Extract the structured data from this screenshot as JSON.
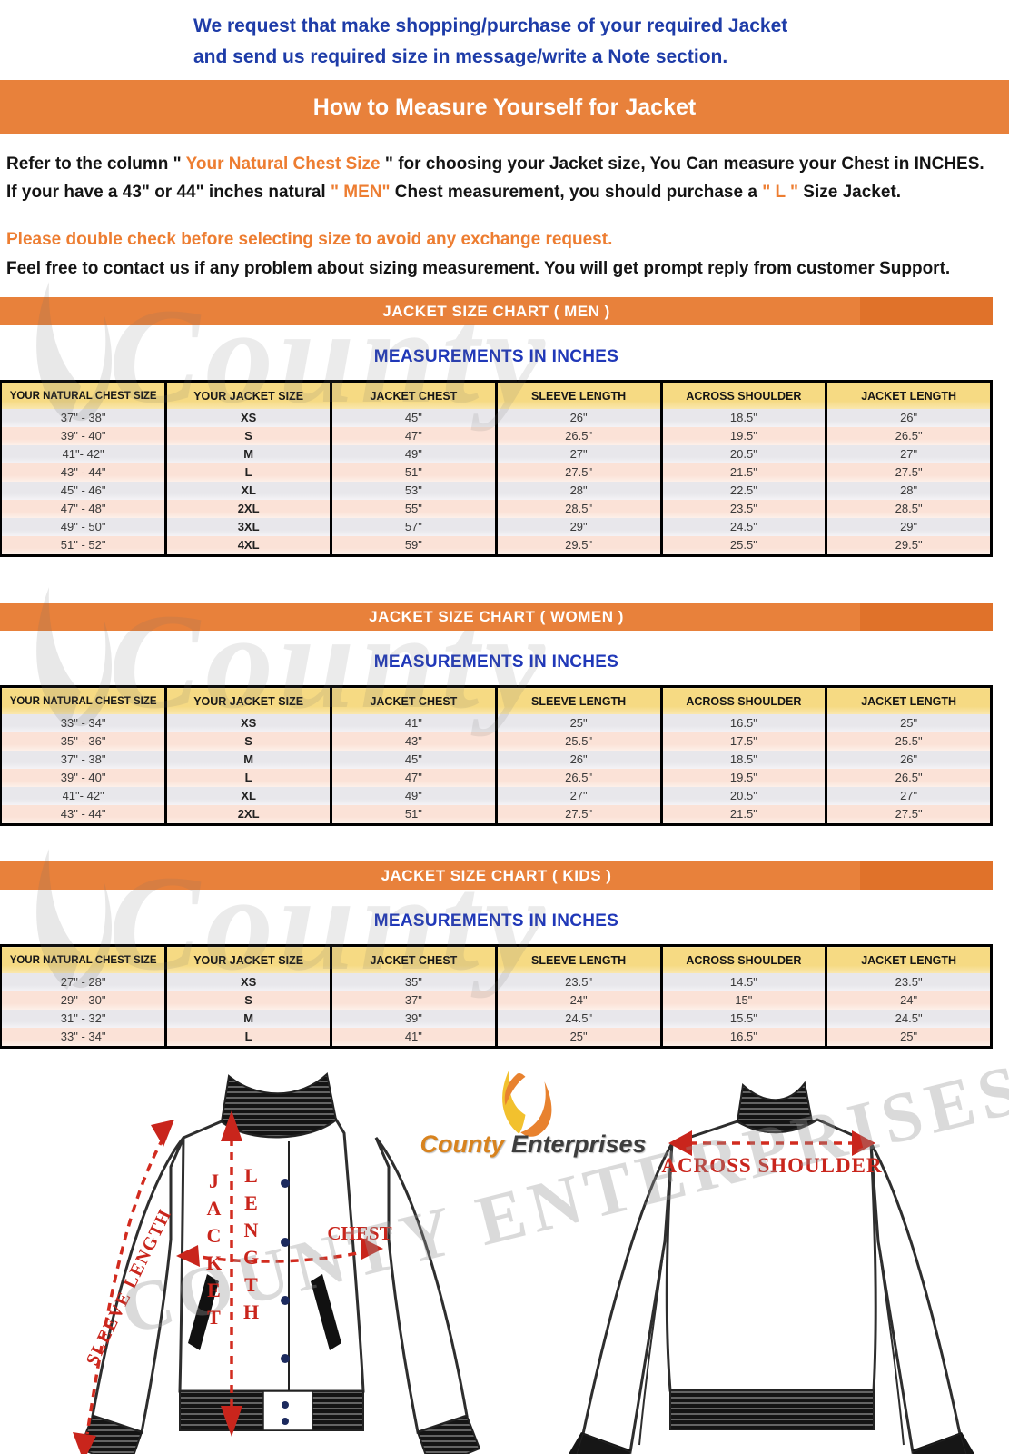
{
  "intro": {
    "line1": "We request that make shopping/purchase of your required Jacket",
    "line2": "and send us required size in message/write a Note section."
  },
  "banner": {
    "title": "How to Measure Yourself for Jacket"
  },
  "instructions": {
    "refer_prefix": "Refer to the column \" ",
    "refer_highlight": "Your Natural Chest Size",
    "refer_suffix": " \" for choosing your Jacket size, You Can measure your Chest in INCHES.",
    "size_prefix": "If your have a 43\" or 44\"  inches natural ",
    "size_highlight1": "\" MEN\"",
    "size_mid": " Chest measurement, you should purchase a ",
    "size_highlight2": "\" L \"",
    "size_suffix": " Size Jacket.",
    "warning": "Please double check before selecting size to avoid any exchange request.",
    "contact": "Feel free to contact us if any problem about sizing measurement. You will get prompt reply from customer Support."
  },
  "sections": [
    {
      "banner": "JACKET SIZE CHART ( MEN )",
      "subtitle": "MEASUREMENTS IN INCHES",
      "columns": [
        "YOUR NATURAL CHEST SIZE",
        "YOUR JACKET SIZE",
        "JACKET CHEST",
        "SLEEVE LENGTH",
        "ACROSS SHOULDER",
        "JACKET LENGTH"
      ],
      "rows": [
        [
          "37\" - 38\"",
          "XS",
          "45\"",
          "26\"",
          "18.5\"",
          "26\""
        ],
        [
          "39\" - 40\"",
          "S",
          "47\"",
          "26.5\"",
          "19.5\"",
          "26.5\""
        ],
        [
          "41\"- 42\"",
          "M",
          "49\"",
          "27\"",
          "20.5\"",
          "27\""
        ],
        [
          "43\" - 44\"",
          "L",
          "51\"",
          "27.5\"",
          "21.5\"",
          "27.5\""
        ],
        [
          "45\" - 46\"",
          "XL",
          "53\"",
          "28\"",
          "22.5\"",
          "28\""
        ],
        [
          "47\" - 48\"",
          "2XL",
          "55\"",
          "28.5\"",
          "23.5\"",
          "28.5\""
        ],
        [
          "49\" - 50\"",
          "3XL",
          "57\"",
          "29\"",
          "24.5\"",
          "29\""
        ],
        [
          "51\" - 52\"",
          "4XL",
          "59\"",
          "29.5\"",
          "25.5\"",
          "29.5\""
        ]
      ]
    },
    {
      "banner": "JACKET SIZE CHART ( WOMEN )",
      "subtitle": "MEASUREMENTS IN INCHES",
      "columns": [
        "YOUR NATURAL CHEST SIZE",
        "YOUR JACKET SIZE",
        "JACKET CHEST",
        "SLEEVE LENGTH",
        "ACROSS SHOULDER",
        "JACKET LENGTH"
      ],
      "rows": [
        [
          "33\" - 34\"",
          "XS",
          "41\"",
          "25\"",
          "16.5\"",
          "25\""
        ],
        [
          "35\" - 36\"",
          "S",
          "43\"",
          "25.5\"",
          "17.5\"",
          "25.5\""
        ],
        [
          "37\" - 38\"",
          "M",
          "45\"",
          "26\"",
          "18.5\"",
          "26\""
        ],
        [
          "39\" - 40\"",
          "L",
          "47\"",
          "26.5\"",
          "19.5\"",
          "26.5\""
        ],
        [
          "41\"- 42\"",
          "XL",
          "49\"",
          "27\"",
          "20.5\"",
          "27\""
        ],
        [
          "43\" - 44\"",
          "2XL",
          "51\"",
          "27.5\"",
          "21.5\"",
          "27.5\""
        ]
      ]
    },
    {
      "banner": "JACKET SIZE CHART ( KIDS )",
      "subtitle": "MEASUREMENTS IN INCHES",
      "columns": [
        "YOUR NATURAL CHEST SIZE",
        "YOUR JACKET SIZE",
        "JACKET CHEST",
        "SLEEVE LENGTH",
        "ACROSS SHOULDER",
        "JACKET LENGTH"
      ],
      "rows": [
        [
          "27\" - 28\"",
          "XS",
          "35\"",
          "23.5\"",
          "14.5\"",
          "23.5\""
        ],
        [
          "29\" - 30\"",
          "S",
          "37\"",
          "24\"",
          "15\"",
          "24\""
        ],
        [
          "31\" - 32\"",
          "M",
          "39\"",
          "24.5\"",
          "15.5\"",
          "24.5\""
        ],
        [
          "33\" - 34\"",
          "L",
          "41\"",
          "25\"",
          "16.5\"",
          "25\""
        ]
      ]
    }
  ],
  "diagram": {
    "sleeve_length_label": "SLEEVE LENGTH",
    "jacket_word": "JACKET",
    "length_word": "LENGTH",
    "chest_label": "CHEST",
    "across_shoulder_label": "ACROSS SHOULDER"
  },
  "logo": {
    "name_first": "County",
    "name_second": "Enterprises"
  },
  "watermarks": {
    "county": "County",
    "enterprises": "COUNTY ENTERPRISES"
  },
  "colors": {
    "banner_orange": "#e8813b",
    "banner_orange_dark": "#e0722a",
    "highlight_orange": "#ed7d31",
    "intro_blue": "#1e3ca8",
    "subtitle_blue": "#2038b8",
    "diagram_red": "#c9251c",
    "header_yellow": "#f6da83",
    "row_gray": "#e8e7eb",
    "row_pink": "#fbe2d7",
    "button_navy": "#1c2a5e"
  }
}
